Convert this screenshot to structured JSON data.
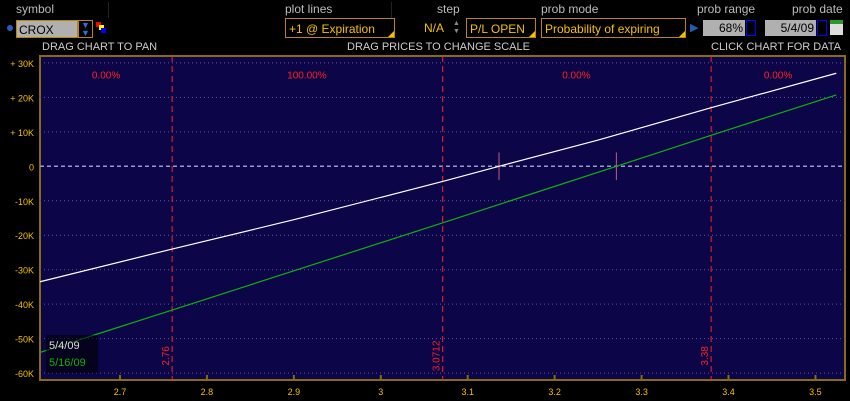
{
  "header": {
    "symbol_label": "symbol",
    "symbol_value": "CROX",
    "plot_lines_label": "plot lines",
    "plot_lines_value": "+1 @ Expiration",
    "step_label": "step",
    "step_value": "N/A",
    "pl_mode_value": "P/L OPEN",
    "prob_mode_label": "prob mode",
    "prob_mode_value": "Probability of expiring",
    "prob_range_label": "prob range",
    "prob_range_value": "68%",
    "prob_date_label": "prob date",
    "prob_date_value": "5/4/09"
  },
  "hints": {
    "pan": "DRAG CHART TO PAN",
    "scale": "DRAG PRICES TO CHANGE SCALE",
    "data": "CLICK CHART FOR DATA"
  },
  "colors": {
    "plot_bg": "#0c0548",
    "accent": "#f5c000",
    "prob_line": "#ff2020",
    "series_today": "#ffffff",
    "series_exp": "#10b010"
  },
  "chart_data": {
    "type": "line",
    "xlim": [
      2.608,
      3.534
    ],
    "ylim": [
      -62000,
      32000
    ],
    "x_ticks": [
      2.7,
      2.8,
      2.9,
      3,
      3.1,
      3.2,
      3.3,
      3.4,
      3.5
    ],
    "x_tick_labels": [
      "2.7",
      "2.8",
      "2.9",
      "3",
      "3.1",
      "3.2",
      "3.3",
      "3.4",
      "3.5"
    ],
    "y_ticks": [
      30000,
      20000,
      10000,
      0,
      -10000,
      -20000,
      -30000,
      -40000,
      -50000,
      -60000
    ],
    "y_tick_labels": [
      "+ 30K",
      "+ 20K",
      "+ 10K",
      "0",
      "-10K",
      "-20K",
      "-30K",
      "-40K",
      "-50K",
      "-60K"
    ],
    "prob_lines": [
      {
        "x": 2.76,
        "label": "2.76"
      },
      {
        "x": 3.0712,
        "label": "3.0712"
      },
      {
        "x": 3.38,
        "label": "3.38"
      }
    ],
    "prob_labels": [
      {
        "x": 2.684,
        "text": "0.00%"
      },
      {
        "x": 2.915,
        "text": "100.00%"
      },
      {
        "x": 3.225,
        "text": "0.00%"
      },
      {
        "x": 3.457,
        "text": "0.00%"
      }
    ],
    "breakevens": [
      3.136,
      3.271
    ],
    "series": [
      {
        "name": "5/4/09",
        "color": "#ffffff",
        "x": [
          2.608,
          2.76,
          2.9,
          3.0712,
          3.136,
          3.25,
          3.38,
          3.524
        ],
        "y": [
          -33500,
          -24000,
          -15500,
          -4400,
          0,
          7600,
          17000,
          27000
        ]
      },
      {
        "name": "5/16/09",
        "color": "#10b010",
        "x": [
          2.608,
          2.76,
          3.0712,
          3.271,
          3.38,
          3.524
        ],
        "y": [
          -54000,
          -41700,
          -16400,
          0,
          9000,
          20700
        ]
      }
    ]
  }
}
